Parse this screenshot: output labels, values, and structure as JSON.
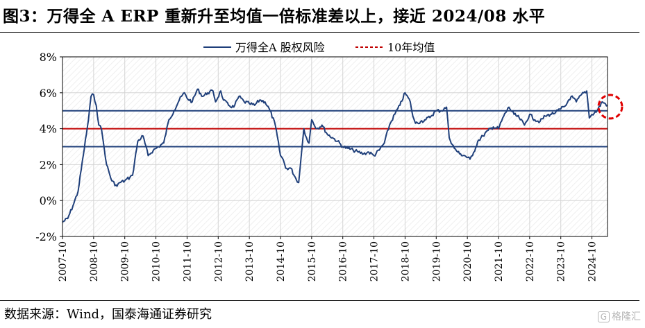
{
  "title": "图3：万得全 A ERP 重新升至均值一倍标准差以上，接近 2024/08 水平",
  "source": "数据来源：Wind，国泰海通证券研究",
  "watermark": "格隆汇",
  "colors": {
    "series": "#1f3f7a",
    "mean_line": "#c00000",
    "band_lines": "#1f3f7a",
    "highlight_circle": "#e00000",
    "grid": "#d4d4d4"
  },
  "chart_data": {
    "type": "line",
    "legend": [
      "万得全A 股权风险",
      "10年均值"
    ],
    "legend_position": "top",
    "y_ticks": [
      "8%",
      "6%",
      "4%",
      "2%",
      "0%",
      "-2%"
    ],
    "ylim": [
      -2,
      8
    ],
    "x_ticks": [
      "2007-10",
      "2008-10",
      "2009-10",
      "2010-10",
      "2011-10",
      "2012-10",
      "2013-10",
      "2014-10",
      "2015-10",
      "2016-10",
      "2017-10",
      "2018-10",
      "2019-10",
      "2020-10",
      "2021-10",
      "2022-10",
      "2023-10",
      "2024-10"
    ],
    "x_range": [
      "2007-10",
      "2025-04"
    ],
    "grid": true,
    "reference_lines": {
      "mean": 4.0,
      "plus_one_std": 5.0,
      "minus_one_std": 3.0
    },
    "highlight": "circle around latest value (2025-04)",
    "series": [
      {
        "name": "万得全A 股权风险",
        "x": [
          "2007-10",
          "2007-12",
          "2008-02",
          "2008-04",
          "2008-06",
          "2008-08",
          "2008-09",
          "2008-10",
          "2008-11",
          "2008-12",
          "2009-01",
          "2009-02",
          "2009-03",
          "2009-05",
          "2009-07",
          "2009-08",
          "2009-10",
          "2009-12",
          "2010-01",
          "2010-03",
          "2010-05",
          "2010-07",
          "2010-09",
          "2010-11",
          "2011-01",
          "2011-03",
          "2011-05",
          "2011-07",
          "2011-09",
          "2011-10",
          "2011-12",
          "2012-02",
          "2012-04",
          "2012-06",
          "2012-08",
          "2012-09",
          "2012-11",
          "2012-12",
          "2013-02",
          "2013-04",
          "2013-06",
          "2013-08",
          "2013-10",
          "2013-12",
          "2014-02",
          "2014-04",
          "2014-06",
          "2014-08",
          "2014-10",
          "2014-11",
          "2014-12",
          "2015-02",
          "2015-04",
          "2015-05",
          "2015-06",
          "2015-07",
          "2015-08",
          "2015-09",
          "2015-10",
          "2015-12",
          "2016-02",
          "2016-04",
          "2016-06",
          "2016-08",
          "2016-10",
          "2016-12",
          "2017-02",
          "2017-04",
          "2017-06",
          "2017-08",
          "2017-10",
          "2017-12",
          "2018-02",
          "2018-04",
          "2018-06",
          "2018-08",
          "2018-10",
          "2018-12",
          "2019-01",
          "2019-02",
          "2019-04",
          "2019-06",
          "2019-08",
          "2019-10",
          "2019-12",
          "2020-02",
          "2020-03",
          "2020-05",
          "2020-07",
          "2020-09",
          "2020-11",
          "2020-12",
          "2021-02",
          "2021-04",
          "2021-06",
          "2021-08",
          "2021-10",
          "2021-12",
          "2022-02",
          "2022-04",
          "2022-06",
          "2022-08",
          "2022-10",
          "2022-12",
          "2023-02",
          "2023-04",
          "2023-06",
          "2023-08",
          "2023-10",
          "2023-12",
          "2024-01",
          "2024-02",
          "2024-04",
          "2024-06",
          "2024-08",
          "2024-09",
          "2024-10",
          "2024-12",
          "2025-02",
          "2025-04"
        ],
        "values": [
          -1.2,
          -1.0,
          -0.3,
          0.5,
          2.5,
          4.5,
          5.8,
          5.9,
          5.3,
          4.2,
          4.0,
          3.0,
          2.0,
          1.1,
          0.8,
          1.0,
          1.1,
          1.3,
          1.4,
          3.3,
          3.6,
          2.5,
          2.8,
          3.0,
          3.2,
          4.5,
          5.0,
          5.6,
          6.0,
          5.7,
          5.5,
          6.2,
          5.8,
          6.0,
          6.1,
          5.5,
          6.1,
          5.6,
          5.3,
          5.2,
          5.8,
          5.5,
          5.4,
          5.3,
          5.6,
          5.5,
          5.0,
          4.2,
          2.5,
          2.3,
          1.8,
          1.8,
          1.2,
          1.0,
          2.5,
          4.0,
          3.5,
          3.2,
          4.5,
          4.0,
          4.2,
          3.7,
          3.5,
          3.3,
          3.0,
          2.9,
          2.8,
          2.7,
          2.6,
          2.7,
          2.5,
          2.8,
          3.2,
          4.2,
          4.8,
          5.3,
          6.0,
          5.5,
          4.7,
          4.3,
          4.4,
          4.5,
          4.7,
          5.0,
          5.0,
          5.2,
          3.5,
          2.9,
          2.6,
          2.5,
          2.3,
          2.5,
          3.3,
          3.6,
          3.9,
          4.1,
          4.0,
          4.7,
          5.2,
          4.8,
          4.6,
          4.2,
          4.8,
          4.5,
          4.4,
          4.7,
          4.8,
          4.9,
          5.1,
          5.3,
          5.6,
          5.8,
          5.5,
          5.9,
          6.1,
          4.6,
          4.8,
          5.0,
          5.5,
          5.3
        ]
      },
      {
        "name": "10年均值",
        "values": [
          4.0
        ]
      }
    ]
  }
}
